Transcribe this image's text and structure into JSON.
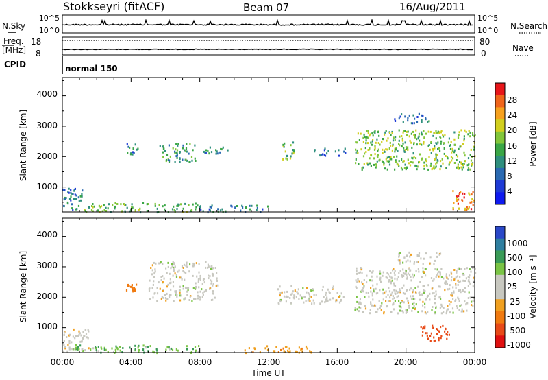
{
  "header": {
    "station": "Stokkseyri (fitACF)",
    "beam": "Beam 07",
    "date": "16/Aug/2011"
  },
  "noise_panel": {
    "left_label": "N.Sky",
    "right_label": "N.Search",
    "y_ticks": [
      "10^5",
      "10^0"
    ]
  },
  "freq_panel": {
    "left_label_1": "Freq.",
    "left_label_2": "[MHz]",
    "left_ticks": [
      "18",
      "8"
    ],
    "right_label": "Nave",
    "right_ticks": [
      "80",
      "0"
    ]
  },
  "cpid": {
    "label": "CPID",
    "value": "normal 150"
  },
  "x_axis": {
    "ticks": [
      "00:00",
      "04:00",
      "08:00",
      "12:00",
      "16:00",
      "20:00",
      "00:00"
    ],
    "label": "Time UT"
  },
  "colorbars": {
    "power": {
      "label": "Power [dB]",
      "ticks": [
        "28",
        "24",
        "20",
        "16",
        "12",
        "8",
        "4"
      ],
      "colors": [
        "#e8161a",
        "#f0651b",
        "#f6a11e",
        "#d2cf1e",
        "#82c63a",
        "#3aa646",
        "#2f8f7e",
        "#2b6ab2",
        "#1f3bd6",
        "#0f1af0"
      ]
    },
    "velocity": {
      "label": "Velocity [m s⁻¹]",
      "ticks": [
        "1000",
        "500",
        "100",
        "25",
        "-25",
        "-100",
        "-500",
        "-1000"
      ],
      "colors": [
        "#2a48c8",
        "#2f7fa0",
        "#3a9b57",
        "#7ac445",
        "#c8c8c0",
        "#c8c8c0",
        "#f0a020",
        "#f07a10",
        "#e84a18",
        "#e01010"
      ]
    }
  },
  "chart_data": [
    {
      "type": "heatmap",
      "title": "",
      "ylabel": "Slant Range [km]",
      "xlabel": "",
      "y_ticks": [
        "1000",
        "2000",
        "3000",
        "4000"
      ],
      "ylim": [
        180,
        4600
      ],
      "xlim": [
        0,
        24
      ],
      "colorbar": "Power [dB]",
      "regions": [
        {
          "t": [
            0.0,
            1.2
          ],
          "r": [
            250,
            1000
          ],
          "v": 8
        },
        {
          "t": [
            1.2,
            8.0
          ],
          "r": [
            200,
            500
          ],
          "v": 14
        },
        {
          "t": [
            8.0,
            12.0
          ],
          "r": [
            200,
            420
          ],
          "v": 10
        },
        {
          "t": [
            3.7,
            4.4
          ],
          "r": [
            2100,
            2450
          ],
          "v": 10
        },
        {
          "t": [
            5.6,
            7.8
          ],
          "r": [
            1850,
            2450
          ],
          "v": 12
        },
        {
          "t": [
            8.2,
            9.6
          ],
          "r": [
            2050,
            2350
          ],
          "v": 10
        },
        {
          "t": [
            12.8,
            13.5
          ],
          "r": [
            1900,
            2550
          ],
          "v": 14
        },
        {
          "t": [
            14.5,
            16.5
          ],
          "r": [
            2050,
            2300
          ],
          "v": 8
        },
        {
          "t": [
            17.0,
            24.0
          ],
          "r": [
            1600,
            2900
          ],
          "v": 16
        },
        {
          "t": [
            19.3,
            21.5
          ],
          "r": [
            3100,
            3450
          ],
          "v": 8
        },
        {
          "t": [
            22.6,
            24.0
          ],
          "r": [
            250,
            900
          ],
          "v": 24
        }
      ]
    },
    {
      "type": "heatmap",
      "title": "",
      "ylabel": "Slant Range [km]",
      "xlabel": "Time UT",
      "y_ticks": [
        "1000",
        "2000",
        "3000",
        "4000"
      ],
      "ylim": [
        180,
        4600
      ],
      "xlim": [
        0,
        24
      ],
      "colorbar": "Velocity [m s⁻¹]",
      "regions": [
        {
          "t": [
            0.0,
            1.5
          ],
          "r": [
            250,
            1000
          ],
          "v": 0
        },
        {
          "t": [
            0.5,
            8.0
          ],
          "r": [
            200,
            450
          ],
          "v": 50
        },
        {
          "t": [
            10.5,
            14.5
          ],
          "r": [
            200,
            420
          ],
          "v": -80
        },
        {
          "t": [
            3.7,
            4.4
          ],
          "r": [
            2200,
            2450
          ],
          "v": -200
        },
        {
          "t": [
            5.0,
            9.0
          ],
          "r": [
            1900,
            3200
          ],
          "v": 0
        },
        {
          "t": [
            12.5,
            16.5
          ],
          "r": [
            1800,
            2400
          ],
          "v": 0
        },
        {
          "t": [
            17.0,
            24.0
          ],
          "r": [
            1500,
            3000
          ],
          "v": 0
        },
        {
          "t": [
            20.8,
            22.5
          ],
          "r": [
            600,
            1100
          ],
          "v": -600
        },
        {
          "t": [
            19.5,
            22.0
          ],
          "r": [
            3100,
            3500
          ],
          "v": 0
        }
      ]
    }
  ]
}
